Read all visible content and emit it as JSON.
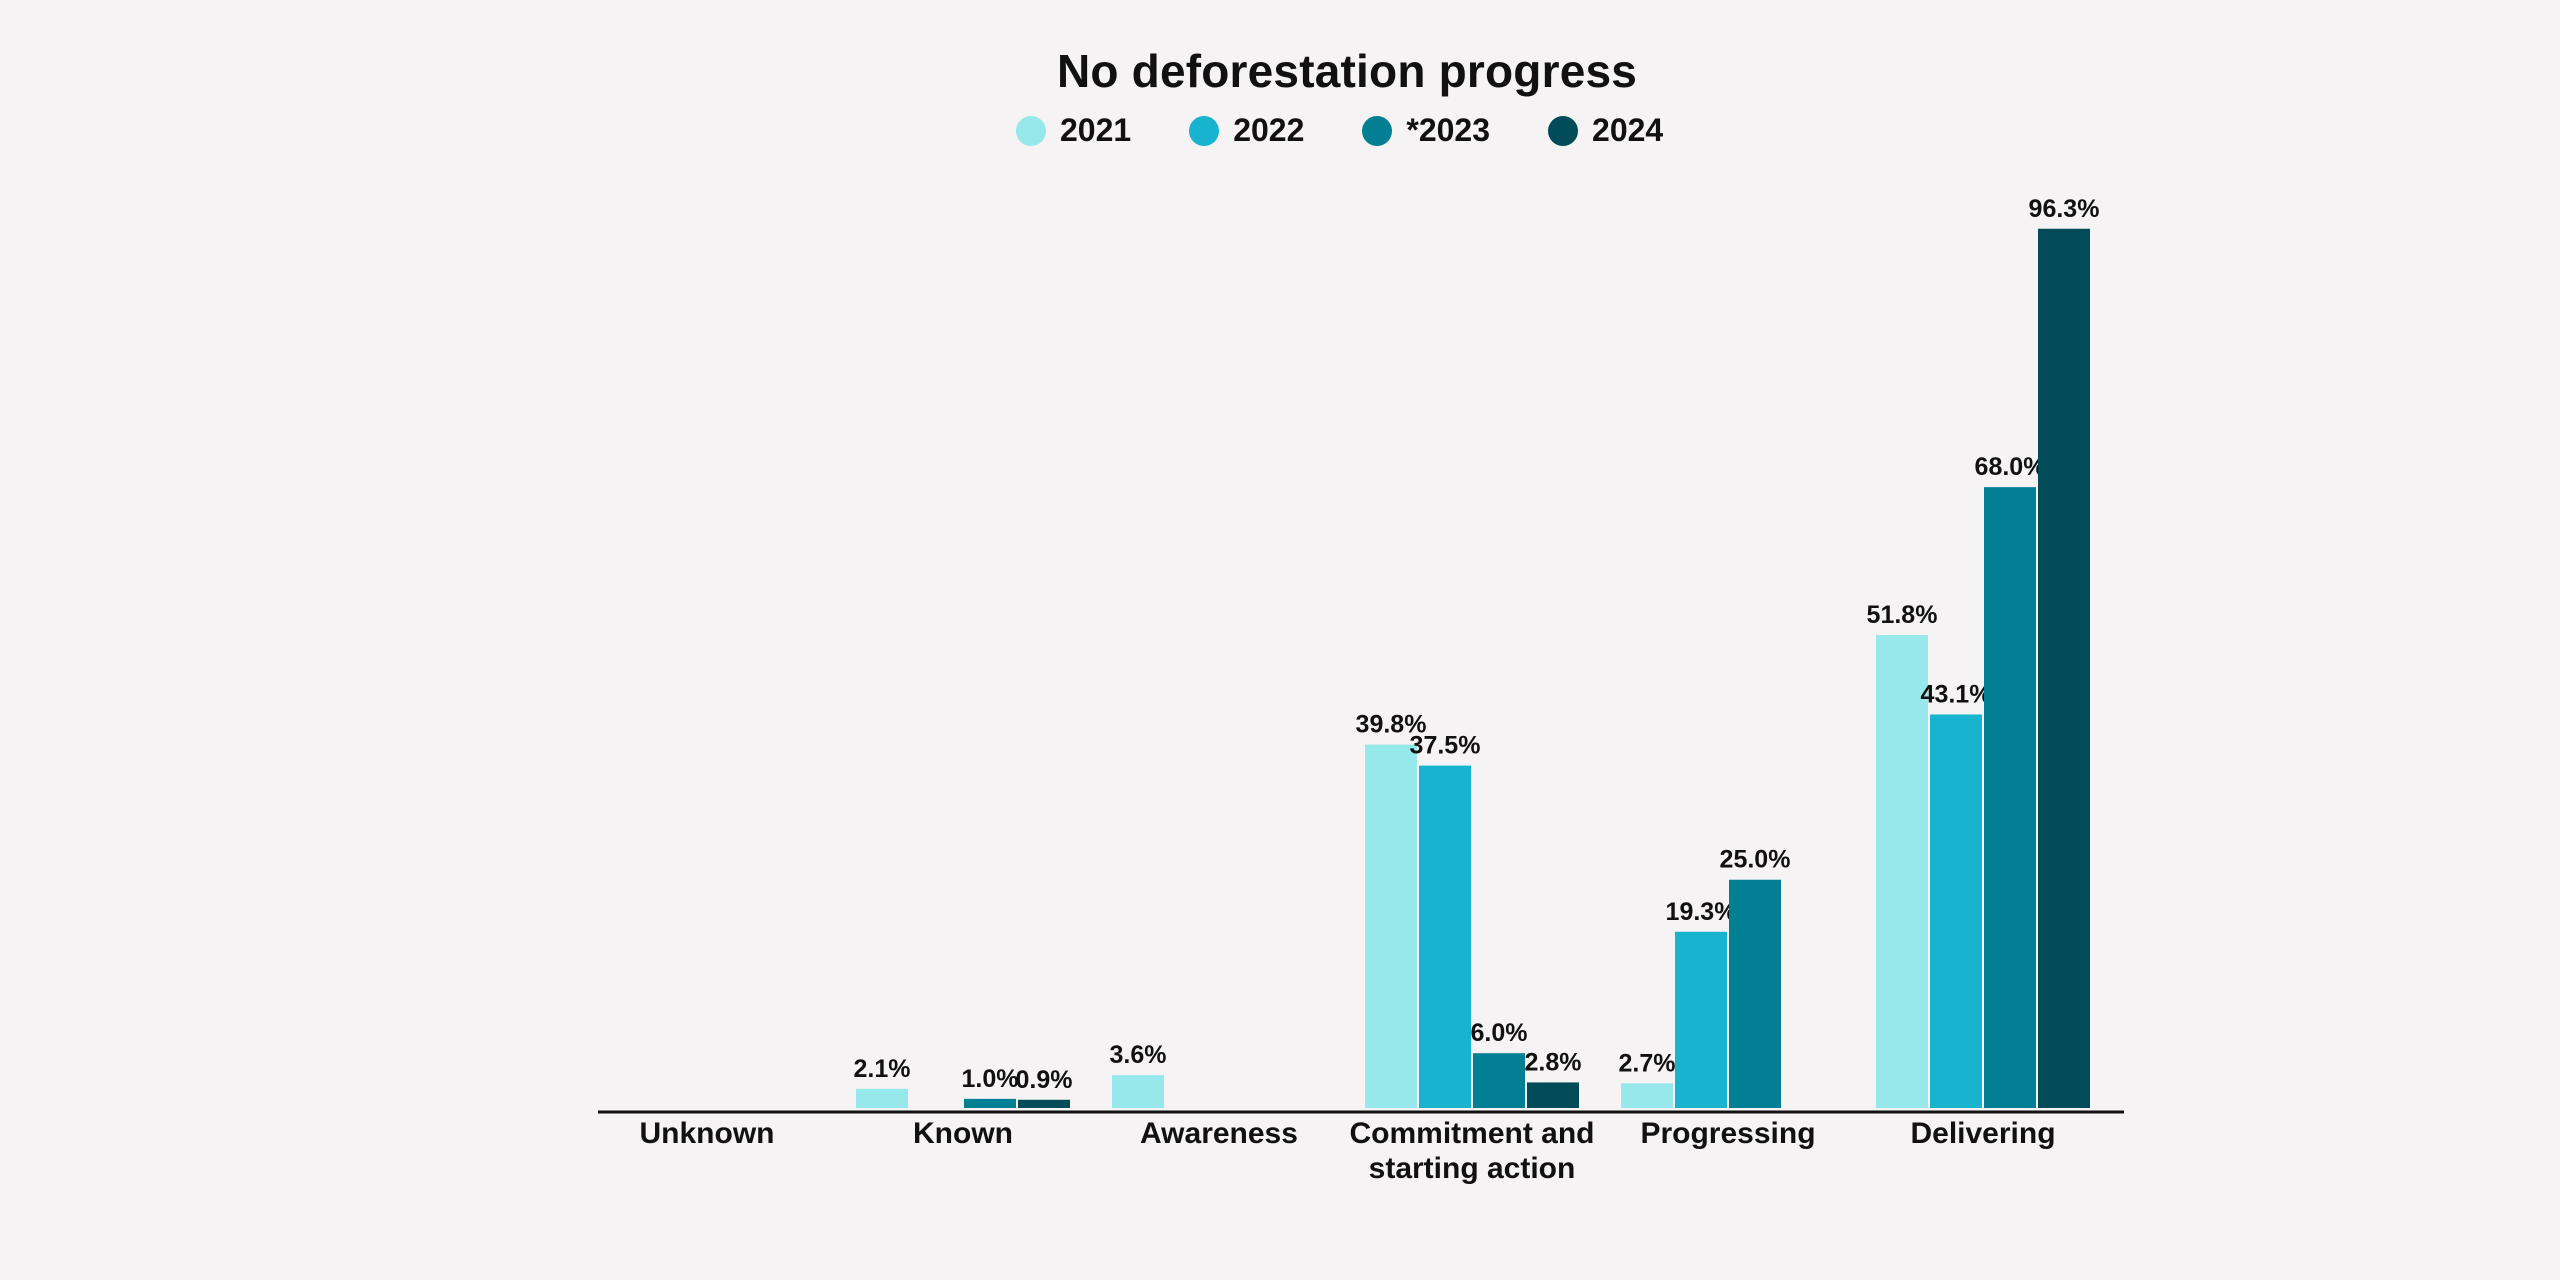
{
  "chart_data": {
    "type": "bar",
    "title": "No deforestation progress",
    "categories": [
      "Unknown",
      "Known",
      "Awareness",
      "Commitment and starting action",
      "Progressing",
      "Delivering"
    ],
    "category_lines": [
      [
        "Unknown"
      ],
      [
        "Known"
      ],
      [
        "Awareness"
      ],
      [
        "Commitment and",
        "starting action"
      ],
      [
        "Progressing"
      ],
      [
        "Delivering"
      ]
    ],
    "series": [
      {
        "name": "2021",
        "color": "#96e8eb",
        "values": [
          null,
          2.1,
          3.6,
          39.8,
          2.7,
          51.8
        ],
        "labels": [
          "",
          "2.1%",
          "3.6%",
          "39.8%",
          "2.7%",
          "51.8%"
        ]
      },
      {
        "name": "2022",
        "color": "#17b3cf",
        "values": [
          null,
          null,
          null,
          37.5,
          19.3,
          43.1
        ],
        "labels": [
          "",
          "",
          "",
          "37.5%",
          "19.3%",
          "43.1%"
        ]
      },
      {
        "name": "*2023",
        "color": "#037f94",
        "values": [
          null,
          1.0,
          null,
          6.0,
          25.0,
          68.0
        ],
        "labels": [
          "",
          "1.0%",
          "",
          "6.0%",
          "25.0%",
          "68.0%"
        ]
      },
      {
        "name": "2024",
        "color": "#024b59",
        "values": [
          null,
          0.9,
          null,
          2.8,
          null,
          96.3
        ],
        "labels": [
          "",
          "0.9%",
          "",
          "2.8%",
          "",
          "96.3%"
        ]
      }
    ],
    "ylim": [
      0,
      100
    ],
    "xlabel": "",
    "ylabel": "",
    "grid": false,
    "legend_position": "top-center"
  }
}
